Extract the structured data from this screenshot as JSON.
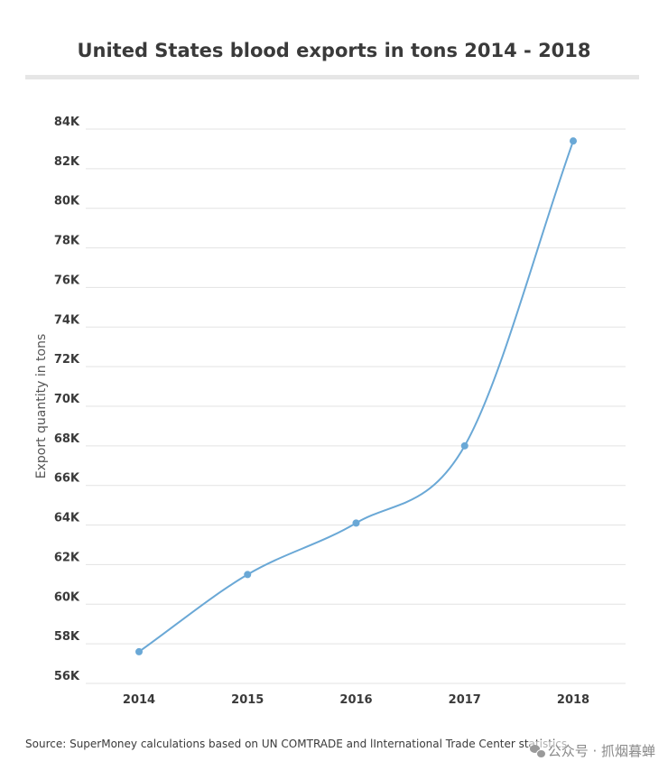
{
  "chart_data": {
    "type": "line",
    "title": "United States blood exports in tons 2014 - 2018",
    "xlabel": "",
    "ylabel": "Export quantity in tons",
    "categories": [
      "2014",
      "2015",
      "2016",
      "2017",
      "2018"
    ],
    "series": [
      {
        "name": "Blood exports",
        "values": [
          57600,
          61500,
          64100,
          68000,
          83400
        ]
      }
    ],
    "ylim": [
      56000,
      84000
    ],
    "yticks": [
      56000,
      58000,
      60000,
      62000,
      64000,
      66000,
      68000,
      70000,
      72000,
      74000,
      76000,
      78000,
      80000,
      82000,
      84000
    ],
    "ytick_labels": [
      "56K",
      "58K",
      "60K",
      "62K",
      "64K",
      "66K",
      "68K",
      "70K",
      "72K",
      "74K",
      "76K",
      "78K",
      "80K",
      "82K",
      "84K"
    ],
    "grid": true,
    "legend": "none",
    "line_color": "#6aa8d6",
    "grid_color": "#e3e3e3"
  },
  "footer": {
    "source": "Source:  SuperMoney calculations based on UN COMTRADE and lInternational Trade Center statistics",
    "watermark": "公众号 · 抓烟暮蝉"
  }
}
